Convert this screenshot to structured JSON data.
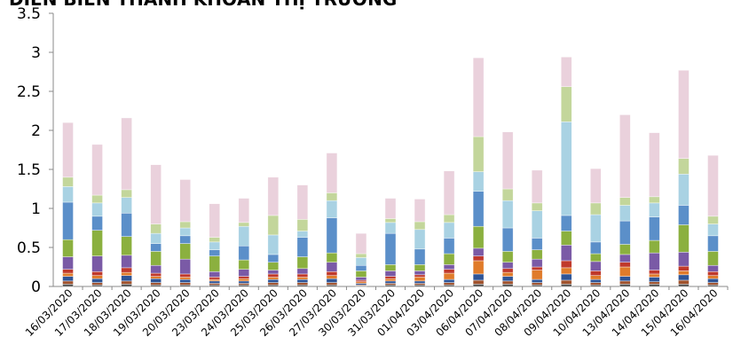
{
  "chart_data": {
    "type": "bar",
    "stacked": true,
    "title": "DIỄN BIẾN THANH KHOẢN THỊ TRƯỜNG",
    "xlabel": "",
    "ylabel": "",
    "ylim": [
      0,
      3.5
    ],
    "yticks": [
      "0",
      "0.5",
      "1",
      "1.5",
      "2",
      "2.5",
      "3",
      "3.5"
    ],
    "grid": false,
    "legend": "none",
    "categories": [
      "16/03/2020",
      "17/03/2020",
      "18/03/2020",
      "19/03/2020",
      "20/03/2020",
      "23/03/2020",
      "24/03/2020",
      "25/03/2020",
      "26/03/2020",
      "27/03/2020",
      "30/03/2020",
      "31/03/2020",
      "01/04/2020",
      "03/04/2020",
      "06/04/2020",
      "07/04/2020",
      "08/04/2020",
      "09/04/2020",
      "10/04/2020",
      "13/04/2020",
      "14/04/2020",
      "15/04/2020",
      "16/04/2020"
    ],
    "totals": [
      2.1,
      1.82,
      2.16,
      1.56,
      1.37,
      1.06,
      1.13,
      1.4,
      1.3,
      1.71,
      0.68,
      1.13,
      1.12,
      1.48,
      2.93,
      2.04,
      1.49,
      2.94,
      1.51,
      2.2,
      1.97,
      2.77,
      1.68
    ],
    "series": [
      {
        "color": "#4d4d4d",
        "values": [
          0.03,
          0.02,
          0.03,
          0.02,
          0.02,
          0.02,
          0.02,
          0.02,
          0.02,
          0.02,
          0.01,
          0.02,
          0.02,
          0.02,
          0.03,
          0.03,
          0.02,
          0.03,
          0.02,
          0.03,
          0.03,
          0.03,
          0.02
        ]
      },
      {
        "color": "#a0522d",
        "values": [
          0.04,
          0.03,
          0.04,
          0.03,
          0.03,
          0.02,
          0.02,
          0.03,
          0.03,
          0.03,
          0.01,
          0.02,
          0.02,
          0.03,
          0.05,
          0.04,
          0.03,
          0.05,
          0.03,
          0.04,
          0.03,
          0.05,
          0.03
        ]
      },
      {
        "color": "#2f5597",
        "values": [
          0.06,
          0.05,
          0.07,
          0.05,
          0.04,
          0.03,
          0.03,
          0.04,
          0.04,
          0.05,
          0.02,
          0.03,
          0.03,
          0.04,
          0.08,
          0.06,
          0.04,
          0.08,
          0.04,
          0.06,
          0.06,
          0.07,
          0.05
        ]
      },
      {
        "color": "#e07b2a",
        "values": [
          0.04,
          0.04,
          0.04,
          0.03,
          0.03,
          0.02,
          0.03,
          0.03,
          0.03,
          0.04,
          0.02,
          0.03,
          0.05,
          0.08,
          0.17,
          0.05,
          0.12,
          0.08,
          0.05,
          0.12,
          0.04,
          0.05,
          0.04
        ]
      },
      {
        "color": "#c0392b",
        "values": [
          0.05,
          0.05,
          0.06,
          0.04,
          0.04,
          0.03,
          0.03,
          0.04,
          0.04,
          0.05,
          0.02,
          0.03,
          0.03,
          0.05,
          0.06,
          0.05,
          0.04,
          0.09,
          0.06,
          0.06,
          0.05,
          0.06,
          0.05
        ]
      },
      {
        "color": "#7a5aa6",
        "values": [
          0.16,
          0.2,
          0.16,
          0.1,
          0.19,
          0.07,
          0.09,
          0.05,
          0.07,
          0.12,
          0.04,
          0.07,
          0.05,
          0.06,
          0.1,
          0.08,
          0.1,
          0.2,
          0.12,
          0.1,
          0.22,
          0.18,
          0.08
        ]
      },
      {
        "color": "#8bb03f",
        "values": [
          0.22,
          0.33,
          0.24,
          0.18,
          0.2,
          0.2,
          0.12,
          0.1,
          0.15,
          0.12,
          0.08,
          0.08,
          0.08,
          0.14,
          0.28,
          0.14,
          0.12,
          0.18,
          0.1,
          0.13,
          0.16,
          0.35,
          0.18
        ]
      },
      {
        "color": "#5b8fc9",
        "values": [
          0.48,
          0.18,
          0.3,
          0.1,
          0.1,
          0.08,
          0.18,
          0.1,
          0.25,
          0.45,
          0.07,
          0.4,
          0.2,
          0.2,
          0.45,
          0.3,
          0.15,
          0.2,
          0.15,
          0.3,
          0.3,
          0.25,
          0.2
        ]
      },
      {
        "color": "#a9d2e3",
        "values": [
          0.2,
          0.17,
          0.2,
          0.13,
          0.1,
          0.1,
          0.25,
          0.25,
          0.08,
          0.22,
          0.1,
          0.14,
          0.25,
          0.2,
          0.25,
          0.35,
          0.35,
          1.2,
          0.35,
          0.2,
          0.18,
          0.4,
          0.15
        ]
      },
      {
        "color": "#c3d69b",
        "values": [
          0.12,
          0.1,
          0.1,
          0.12,
          0.08,
          0.06,
          0.05,
          0.25,
          0.15,
          0.1,
          0.05,
          0.05,
          0.1,
          0.1,
          0.45,
          0.15,
          0.1,
          0.45,
          0.15,
          0.1,
          0.08,
          0.2,
          0.1
        ]
      },
      {
        "color": "#ead1dc",
        "values": [
          0.7,
          0.65,
          0.92,
          0.76,
          0.54,
          0.43,
          0.31,
          0.49,
          0.44,
          0.51,
          0.26,
          0.26,
          0.29,
          0.56,
          1.01,
          0.73,
          0.42,
          0.38,
          0.44,
          1.06,
          0.82,
          1.13,
          0.78
        ]
      }
    ]
  }
}
